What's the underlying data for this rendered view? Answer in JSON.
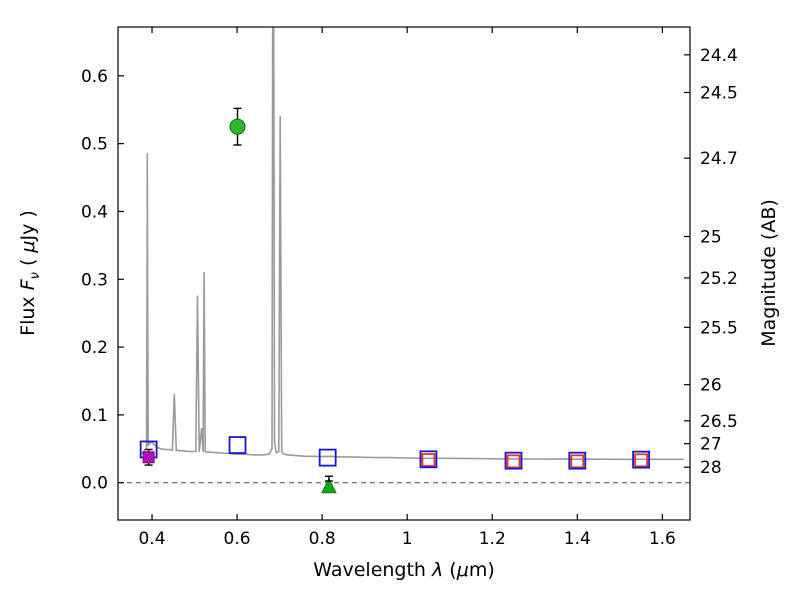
{
  "labels": {
    "flux_prefix": "Flux  ",
    "flux_symbol": "F",
    "flux_sub": "ν",
    "flux_suffix_a": "  ( ",
    "flux_mu": "μ",
    "flux_suffix_b": "Jy )",
    "wavelength_prefix": "Wavelength  ",
    "wavelength_symbol": "λ",
    "wavelength_mid": " (",
    "wavelength_mu": "μ",
    "wavelength_end": "m)",
    "magnitude_label": "Magnitude (AB)"
  },
  "chart_data": {
    "type": "line",
    "title": "",
    "xlabel": "Wavelength λ (μm)",
    "ylabel_left": "Flux Fν ( μJy )",
    "ylabel_right": "Magnitude (AB)",
    "xlim": [
      0.32,
      1.665
    ],
    "ylim": [
      -0.055,
      0.672
    ],
    "grid": false,
    "x_ticks": [
      0.4,
      0.6,
      0.8,
      1.0,
      1.2,
      1.4,
      1.6
    ],
    "x_tick_labels": [
      "0.4",
      "0.6",
      "0.8",
      "1",
      "1.2",
      "1.4",
      "1.6"
    ],
    "y_ticks": [
      0.0,
      0.1,
      0.2,
      0.3,
      0.4,
      0.5,
      0.6
    ],
    "y_tick_labels": [
      "0.0",
      "0.1",
      "0.2",
      "0.3",
      "0.4",
      "0.5",
      "0.6"
    ],
    "right_axis": {
      "label": "Magnitude (AB)",
      "tick_values": [
        24.4,
        24.5,
        24.7,
        25,
        25.2,
        25.5,
        26,
        26.5,
        27,
        28
      ],
      "tick_labels": [
        "24.4",
        "24.5",
        "24.7",
        "25",
        "25.2",
        "25.5",
        "26",
        "26.5",
        "27",
        "28"
      ]
    },
    "zero_line": {
      "y": 0.0,
      "style": "dashed",
      "color": "#000000"
    },
    "series": [
      {
        "name": "model-spectrum",
        "kind": "line",
        "color": "#9a9a9a",
        "linewidth": 1.6,
        "points": [
          [
            0.374,
            0.042
          ],
          [
            0.38,
            0.046
          ],
          [
            0.387,
            0.05
          ],
          [
            0.3885,
            0.3
          ],
          [
            0.389,
            0.485
          ],
          [
            0.3895,
            0.3
          ],
          [
            0.391,
            0.055
          ],
          [
            0.395,
            0.058
          ],
          [
            0.4,
            0.06
          ],
          [
            0.405,
            0.056
          ],
          [
            0.412,
            0.052
          ],
          [
            0.42,
            0.05
          ],
          [
            0.43,
            0.049
          ],
          [
            0.44,
            0.049
          ],
          [
            0.448,
            0.048
          ],
          [
            0.4525,
            0.13
          ],
          [
            0.457,
            0.048
          ],
          [
            0.465,
            0.047
          ],
          [
            0.475,
            0.047
          ],
          [
            0.485,
            0.046
          ],
          [
            0.495,
            0.046
          ],
          [
            0.503,
            0.046
          ],
          [
            0.507,
            0.275
          ],
          [
            0.511,
            0.046
          ],
          [
            0.5165,
            0.08
          ],
          [
            0.52,
            0.046
          ],
          [
            0.5225,
            0.31
          ],
          [
            0.525,
            0.046
          ],
          [
            0.53,
            0.045
          ],
          [
            0.54,
            0.045
          ],
          [
            0.56,
            0.044
          ],
          [
            0.58,
            0.043
          ],
          [
            0.6,
            0.042
          ],
          [
            0.62,
            0.042
          ],
          [
            0.64,
            0.041
          ],
          [
            0.66,
            0.041
          ],
          [
            0.675,
            0.042
          ],
          [
            0.682,
            0.05
          ],
          [
            0.6845,
            0.95
          ],
          [
            0.6855,
            0.95
          ],
          [
            0.688,
            0.06
          ],
          [
            0.692,
            0.044
          ],
          [
            0.698,
            0.046
          ],
          [
            0.7015,
            0.54
          ],
          [
            0.705,
            0.046
          ],
          [
            0.71,
            0.042
          ],
          [
            0.72,
            0.041
          ],
          [
            0.74,
            0.04
          ],
          [
            0.76,
            0.039
          ],
          [
            0.78,
            0.039
          ],
          [
            0.8,
            0.0385
          ],
          [
            0.82,
            0.039
          ],
          [
            0.84,
            0.038
          ],
          [
            0.87,
            0.038
          ],
          [
            0.9,
            0.0375
          ],
          [
            0.93,
            0.037
          ],
          [
            0.96,
            0.037
          ],
          [
            1.0,
            0.0365
          ],
          [
            1.04,
            0.036
          ],
          [
            1.08,
            0.036
          ],
          [
            1.12,
            0.0358
          ],
          [
            1.16,
            0.0355
          ],
          [
            1.2,
            0.0352
          ],
          [
            1.25,
            0.035
          ],
          [
            1.3,
            0.035
          ],
          [
            1.35,
            0.0348
          ],
          [
            1.4,
            0.0347
          ],
          [
            1.45,
            0.0346
          ],
          [
            1.5,
            0.0345
          ],
          [
            1.55,
            0.0345
          ],
          [
            1.6,
            0.0345
          ],
          [
            1.65,
            0.0345
          ]
        ]
      },
      {
        "name": "red-open-squares",
        "kind": "scatter",
        "marker": "open-square",
        "color": "#e8331f",
        "size": 12,
        "points": [
          [
            1.05,
            0.0335
          ],
          [
            1.25,
            0.0315
          ],
          [
            1.4,
            0.0315
          ],
          [
            1.55,
            0.033
          ]
        ]
      },
      {
        "name": "blue-open-squares",
        "kind": "scatter",
        "marker": "open-square",
        "color": "#1515dd",
        "size": 16,
        "points": [
          [
            0.392,
            0.049
          ],
          [
            0.601,
            0.0555
          ],
          [
            0.813,
            0.037
          ],
          [
            1.05,
            0.0345
          ],
          [
            1.25,
            0.0325
          ],
          [
            1.4,
            0.0325
          ],
          [
            1.55,
            0.034
          ]
        ]
      },
      {
        "name": "magenta-filled-square",
        "kind": "scatter",
        "marker": "filled-square",
        "color": "#b312b3",
        "edge": "#7a0b7a",
        "size": 11,
        "points": [
          [
            0.392,
            0.0375
          ]
        ],
        "yerr": [
          0.0115
        ],
        "ecolor": "#000000"
      },
      {
        "name": "green-filled-circle",
        "kind": "scatter",
        "marker": "circle",
        "color": "#2fb62f",
        "edge": "#156615",
        "size": 15,
        "points": [
          [
            0.601,
            0.525
          ]
        ],
        "yerr": [
          0.027
        ],
        "ecolor": "#000000"
      },
      {
        "name": "green-triangle",
        "kind": "scatter",
        "marker": "triangle-up",
        "color": "#11a811",
        "edge": "#0a7a0a",
        "size": 14,
        "points": [
          [
            0.816,
            -0.0045
          ]
        ]
      },
      {
        "name": "small-black-errorbar",
        "kind": "scatter",
        "points": [
          [
            0.816,
            0.006
          ]
        ],
        "yerr": [
          0.0035
        ],
        "ecolor": "#000000"
      }
    ]
  }
}
